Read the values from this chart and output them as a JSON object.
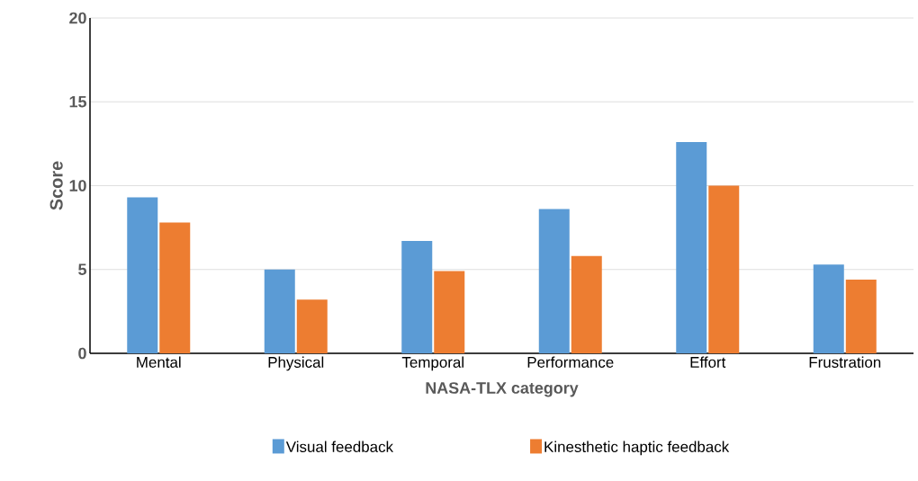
{
  "chart_data": {
    "type": "bar",
    "xlabel": "NASA-TLX category",
    "ylabel": "Score",
    "categories": [
      "Mental",
      "Physical",
      "Temporal",
      "Performance",
      "Effort",
      "Frustration"
    ],
    "series": [
      {
        "name": "Visual feedback",
        "color": "#5b9bd5",
        "values": [
          9.3,
          5.0,
          6.7,
          8.6,
          12.6,
          5.3
        ]
      },
      {
        "name": "Kinesthetic haptic feedback",
        "color": "#ed7d31",
        "values": [
          7.8,
          3.2,
          4.9,
          5.8,
          10.0,
          4.4
        ]
      }
    ],
    "ylim": [
      0,
      20
    ],
    "yticks": [
      0,
      5,
      10,
      15,
      20
    ],
    "grid": "y",
    "legend": "bottom"
  }
}
